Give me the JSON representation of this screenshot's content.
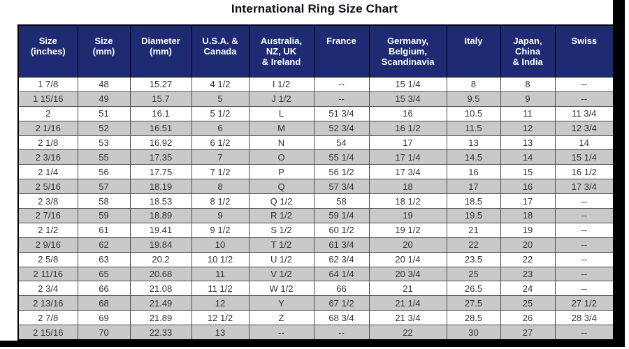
{
  "colors": {
    "header_bg": "#1e2b72",
    "header_text": "#ffffff",
    "row_alt": "#c9c9c9",
    "cell_text": "#333333",
    "frame": "#000000"
  },
  "chart_data": {
    "type": "table",
    "title": "International Ring Size Chart",
    "columns": [
      "Size\n(inches)",
      "Size\n(mm)",
      "Diameter\n(mm)",
      "U.S.A. &\nCanada",
      "Australia,\nNZ, UK\n& Ireland",
      "France",
      "Germany,\nBelgium,\nScandinavia",
      "Italy",
      "Japan,\nChina\n& India",
      "Swiss"
    ],
    "rows": [
      [
        "1 7/8",
        "48",
        "15.27",
        "4 1/2",
        "I 1/2",
        "--",
        "15 1/4",
        "8",
        "8",
        "--"
      ],
      [
        "1 15/16",
        "49",
        "15.7",
        "5",
        "J 1/2",
        "--",
        "15 3/4",
        "9.5",
        "9",
        "--"
      ],
      [
        "2",
        "51",
        "16.1",
        "5 1/2",
        "L",
        "51 3/4",
        "16",
        "10.5",
        "11",
        "11 3/4"
      ],
      [
        "2 1/16",
        "52",
        "16.51",
        "6",
        "M",
        "52 3/4",
        "16 1/2",
        "11.5",
        "12",
        "12 3/4"
      ],
      [
        "2 1/8",
        "53",
        "16.92",
        "6 1/2",
        "N",
        "54",
        "17",
        "13",
        "13",
        "14"
      ],
      [
        "2 3/16",
        "55",
        "17.35",
        "7",
        "O",
        "55 1/4",
        "17 1/4",
        "14.5",
        "14",
        "15 1/4"
      ],
      [
        "2 1/4",
        "56",
        "17.75",
        "7 1/2",
        "P",
        "56 1/2",
        "17 3/4",
        "16",
        "15",
        "16 1/2"
      ],
      [
        "2 5/16",
        "57",
        "18.19",
        "8",
        "Q",
        "57 3/4",
        "18",
        "17",
        "16",
        "17 3/4"
      ],
      [
        "2 3/8",
        "58",
        "18.53",
        "8 1/2",
        "Q 1/2",
        "58",
        "18 1/2",
        "18.5",
        "17",
        "--"
      ],
      [
        "2 7/16",
        "59",
        "18.89",
        "9",
        "R 1/2",
        "59 1/4",
        "19",
        "19.5",
        "18",
        "--"
      ],
      [
        "2 1/2",
        "61",
        "19.41",
        "9 1/2",
        "S 1/2",
        "60 1/2",
        "19 1/2",
        "21",
        "19",
        "--"
      ],
      [
        "2 9/16",
        "62",
        "19.84",
        "10",
        "T 1/2",
        "61 3/4",
        "20",
        "22",
        "20",
        "--"
      ],
      [
        "2 5/8",
        "63",
        "20.2",
        "10 1/2",
        "U 1/2",
        "62 3/4",
        "20 1/4",
        "23.5",
        "22",
        "--"
      ],
      [
        "2 11/16",
        "65",
        "20.68",
        "11",
        "V 1/2",
        "64 1/4",
        "20 3/4",
        "25",
        "23",
        "--"
      ],
      [
        "2 3/4",
        "66",
        "21.08",
        "11 1/2",
        "W 1/2",
        "66",
        "21",
        "26.5",
        "24",
        "--"
      ],
      [
        "2 13/16",
        "68",
        "21.49",
        "12",
        "Y",
        "67 1/2",
        "21 1/4",
        "27.5",
        "25",
        "27 1/2"
      ],
      [
        "2 7/8",
        "69",
        "21.89",
        "12 1/2",
        "Z",
        "68 3/4",
        "21 3/4",
        "28.5",
        "26",
        "28 3/4"
      ],
      [
        "2 15/16",
        "70",
        "22.33",
        "13",
        "--",
        "--",
        "22",
        "30",
        "27",
        "--"
      ]
    ]
  }
}
